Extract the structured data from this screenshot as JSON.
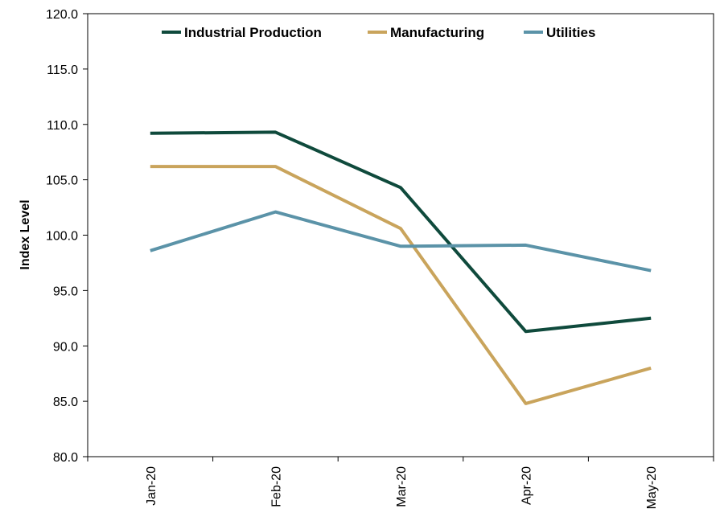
{
  "chart_data": {
    "type": "line",
    "title": "",
    "xlabel": "",
    "ylabel": "Index Level",
    "categories": [
      "Jan-20",
      "Feb-20",
      "Mar-20",
      "Apr-20",
      "May-20"
    ],
    "ylim": [
      80.0,
      120.0
    ],
    "yticks": [
      "80.0",
      "85.0",
      "90.0",
      "95.0",
      "100.0",
      "105.0",
      "110.0",
      "115.0",
      "120.0"
    ],
    "grid": false,
    "legend_position": "top",
    "series": [
      {
        "name": "Industrial Production",
        "color": "#0f4a3c",
        "values": [
          109.2,
          109.3,
          104.3,
          91.3,
          92.5
        ]
      },
      {
        "name": "Manufacturing",
        "color": "#c9a45c",
        "values": [
          106.2,
          106.2,
          100.6,
          84.8,
          88.0
        ]
      },
      {
        "name": "Utilities",
        "color": "#5b93a8",
        "values": [
          98.6,
          102.1,
          99.0,
          99.1,
          96.8
        ]
      }
    ]
  }
}
